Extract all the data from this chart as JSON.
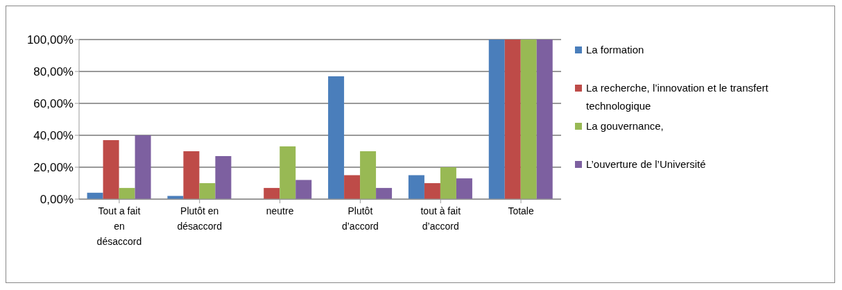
{
  "chart_data": {
    "type": "bar",
    "categories": [
      "Tout a fait en désaccord",
      "Plutôt en désaccord",
      "neutre",
      "Plutôt d’accord",
      "tout à fait d’accord",
      "Totale"
    ],
    "series": [
      {
        "name": "La formation",
        "color": "#4a7ebb",
        "values": [
          4,
          2,
          0,
          77,
          15,
          100
        ]
      },
      {
        "name": "La recherche, l’innovation et le transfert technologique",
        "color": "#be4b48",
        "values": [
          37,
          30,
          7,
          15,
          10,
          100
        ]
      },
      {
        "name": "La gouvernance,",
        "color": "#98b954",
        "values": [
          7,
          10,
          33,
          30,
          20,
          100
        ]
      },
      {
        "name": "L’ouverture de l’Université",
        "color": "#7d60a0",
        "values": [
          40,
          27,
          12,
          7,
          13,
          100
        ]
      }
    ],
    "ylim": [
      0,
      100
    ],
    "yticks": [
      {
        "value": 0,
        "label": "0,00%"
      },
      {
        "value": 20,
        "label": "20,00%"
      },
      {
        "value": 40,
        "label": "40,00%"
      },
      {
        "value": 60,
        "label": "60,00%"
      },
      {
        "value": 80,
        "label": "80,00%"
      },
      {
        "value": 100,
        "label": "100,00%"
      }
    ],
    "grid": "y",
    "legend": "right"
  }
}
